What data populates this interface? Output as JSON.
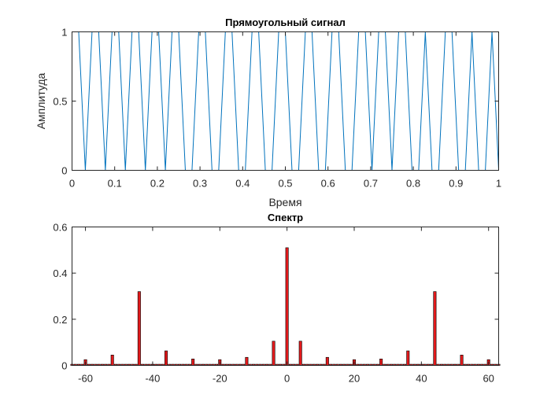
{
  "chart_data": [
    {
      "type": "line",
      "title": "Прямоугольный сигнал",
      "xlabel": "Время",
      "ylabel": "Амплитуда",
      "xlim": [
        0,
        1
      ],
      "ylim": [
        0,
        1
      ],
      "xticks": [
        0,
        0.1,
        0.2,
        0.3,
        0.4,
        0.5,
        0.6,
        0.7,
        0.8,
        0.9,
        1
      ],
      "xtick_labels": [
        "0",
        "0.1",
        "0.2",
        "0.3",
        "0.4",
        "0.5",
        "0.6",
        "0.7",
        "0.8",
        "0.9",
        "1"
      ],
      "yticks": [
        0,
        0.5,
        1
      ],
      "ytick_labels": [
        "0",
        "0.5",
        "1"
      ],
      "grid": false,
      "series": [
        {
          "color": "#0072BD",
          "x": [
            0.0,
            0.0156,
            0.0312,
            0.0469,
            0.0625,
            0.0781,
            0.0938,
            0.1094,
            0.125,
            0.1406,
            0.1562,
            0.1719,
            0.1875,
            0.2031,
            0.2188,
            0.2344,
            0.25,
            0.2656,
            0.2812,
            0.2969,
            0.3125,
            0.3281,
            0.3438,
            0.3594,
            0.375,
            0.3906,
            0.4062,
            0.4219,
            0.4375,
            0.4531,
            0.4688,
            0.4844,
            0.5,
            0.5156,
            0.5312,
            0.5469,
            0.5625,
            0.5781,
            0.5938,
            0.6094,
            0.625,
            0.6406,
            0.6562,
            0.6719,
            0.6875,
            0.7031,
            0.7188,
            0.7344,
            0.75,
            0.7656,
            0.7812,
            0.7969,
            0.8125,
            0.8281,
            0.8438,
            0.8594,
            0.875,
            0.8906,
            0.9062,
            0.9219,
            0.9375,
            0.9531,
            0.9688,
            0.9844,
            1.0
          ],
          "y": [
            1,
            1,
            0,
            1,
            1,
            0,
            1,
            1,
            0,
            1,
            1,
            0,
            1,
            1,
            0,
            1,
            1,
            0,
            0,
            1,
            1,
            0,
            0,
            1,
            1,
            0,
            0,
            1,
            1,
            0,
            0,
            1,
            1,
            0,
            0,
            1,
            1,
            0,
            0,
            1,
            1,
            0,
            0,
            1,
            1,
            0,
            1,
            1,
            0,
            1,
            1,
            0,
            0,
            1,
            0,
            0,
            1,
            1,
            0,
            0,
            1,
            0,
            0,
            1,
            0
          ]
        }
      ]
    },
    {
      "type": "bar",
      "title": "Спектр",
      "xlim": [
        -64,
        63
      ],
      "ylim": [
        0,
        0.6
      ],
      "xticks": [
        -60,
        -40,
        -20,
        0,
        20,
        40,
        60
      ],
      "xtick_labels": [
        "-60",
        "-40",
        "-20",
        "0",
        "20",
        "40",
        "60"
      ],
      "yticks": [
        0,
        0.2,
        0.4,
        0.6
      ],
      "ytick_labels": [
        "0",
        "0.2",
        "0.4",
        "0.6"
      ],
      "grid": false,
      "bar_color": "#E41A1C",
      "edge_color": "#000000",
      "baseline_value": 0.005,
      "peaks": [
        {
          "x": -60,
          "value": 0.025
        },
        {
          "x": -52,
          "value": 0.045
        },
        {
          "x": -44,
          "value": 0.32
        },
        {
          "x": -36,
          "value": 0.063
        },
        {
          "x": -28,
          "value": 0.028
        },
        {
          "x": -20,
          "value": 0.025
        },
        {
          "x": -12,
          "value": 0.035
        },
        {
          "x": -4,
          "value": 0.105
        },
        {
          "x": 0,
          "value": 0.51
        },
        {
          "x": 4,
          "value": 0.105
        },
        {
          "x": 12,
          "value": 0.035
        },
        {
          "x": 20,
          "value": 0.025
        },
        {
          "x": 28,
          "value": 0.028
        },
        {
          "x": 36,
          "value": 0.063
        },
        {
          "x": 44,
          "value": 0.32
        },
        {
          "x": 52,
          "value": 0.045
        },
        {
          "x": 60,
          "value": 0.025
        }
      ]
    }
  ]
}
